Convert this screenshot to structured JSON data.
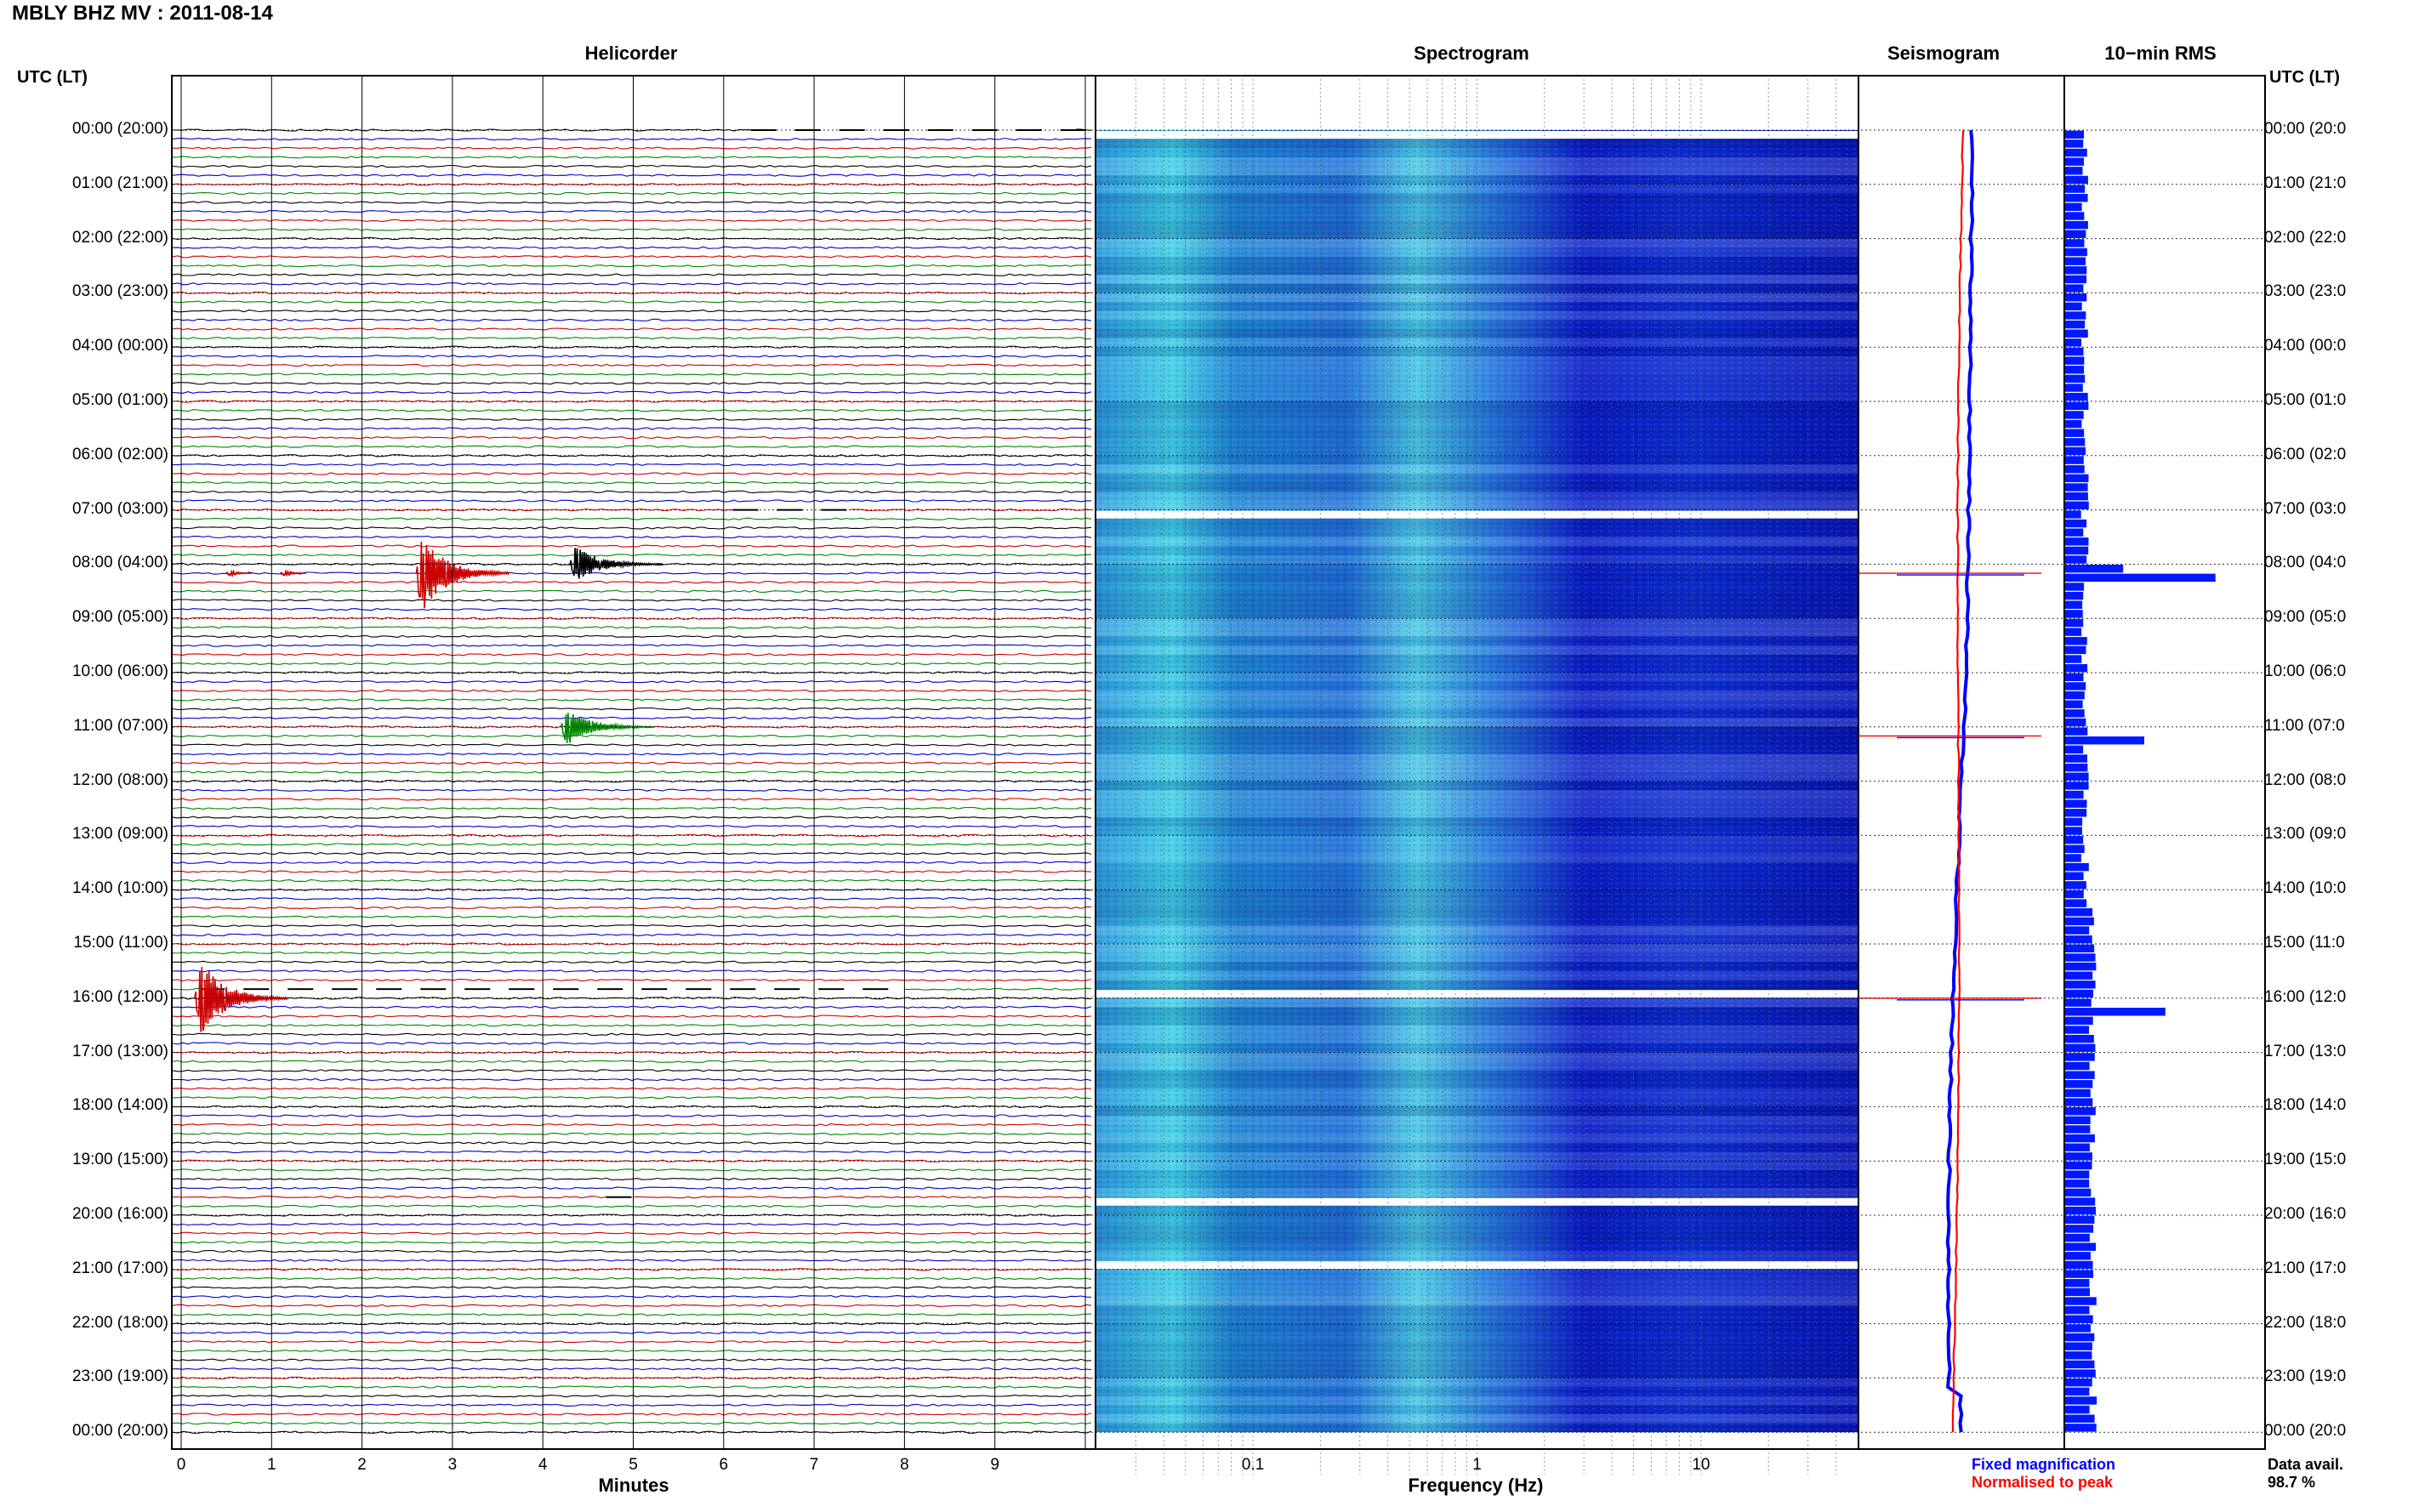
{
  "title": "MBLY BHZ MV : 2011-08-14",
  "time_header_left": "UTC (LT)",
  "time_header_right": "UTC (LT)",
  "panels": {
    "helicorder": "Helicorder",
    "spectrogram": "Spectrogram",
    "seismogram": "Seismogram",
    "rms": "10−min RMS"
  },
  "time_labels_left": [
    "00:00 (20:00)",
    "01:00 (21:00)",
    "02:00 (22:00)",
    "03:00 (23:00)",
    "04:00 (00:00)",
    "05:00 (01:00)",
    "06:00 (02:00)",
    "07:00 (03:00)",
    "08:00 (04:00)",
    "09:00 (05:00)",
    "10:00 (06:00)",
    "11:00 (07:00)",
    "12:00 (08:00)",
    "13:00 (09:00)",
    "14:00 (10:00)",
    "15:00 (11:00)",
    "16:00 (12:00)",
    "17:00 (13:00)",
    "18:00 (14:00)",
    "19:00 (15:00)",
    "20:00 (16:00)",
    "21:00 (17:00)",
    "22:00 (18:00)",
    "23:00 (19:00)",
    "00:00 (20:00)"
  ],
  "time_labels_right": [
    "00:00 (20:0",
    "01:00 (21:0",
    "02:00 (22:0",
    "03:00 (23:0",
    "04:00 (00:0",
    "05:00 (01:0",
    "06:00 (02:0",
    "07:00 (03:0",
    "08:00 (04:0",
    "09:00 (05:0",
    "10:00 (06:0",
    "11:00 (07:0",
    "12:00 (08:0",
    "13:00 (09:0",
    "14:00 (10:0",
    "15:00 (11:0",
    "16:00 (12:0",
    "17:00 (13:0",
    "18:00 (14:0",
    "19:00 (15:0",
    "20:00 (16:0",
    "21:00 (17:0",
    "22:00 (18:0",
    "23:00 (19:0",
    "00:00 (20:0"
  ],
  "x_axis_minutes": {
    "label": "Minutes",
    "ticks": [
      "0",
      "1",
      "2",
      "3",
      "4",
      "5",
      "6",
      "7",
      "8",
      "9"
    ]
  },
  "x_axis_frequency": {
    "label": "Frequency (Hz)",
    "ticks": [
      "0.1",
      "1",
      "10"
    ]
  },
  "legend": {
    "fixed": "Fixed magnification",
    "normalised": "Normalised to peak",
    "fixed_color": "#0000ff",
    "normalised_color": "#ff0000"
  },
  "data_avail": {
    "label": "Data avail.",
    "value": "98.7 %"
  },
  "trace_colors": [
    "#000000",
    "#0000cc",
    "#cc0000",
    "#008800"
  ],
  "chart_data": {
    "type": "heatmap",
    "helicorder": {
      "minutes_range": [
        0,
        10
      ],
      "lines_per_hour": 6,
      "hours": 24,
      "events": [
        {
          "time_utc": "08:10",
          "minute": 2.6,
          "color": "#cc0000",
          "amplitude": "large"
        },
        {
          "time_utc": "08:00",
          "minute": 4.3,
          "color": "#000000",
          "amplitude": "medium"
        },
        {
          "time_utc": "08:10",
          "minute": 1.1,
          "color": "#cc0000",
          "amplitude": "small"
        },
        {
          "time_utc": "08:10",
          "minute": 0.5,
          "color": "#cc0000",
          "amplitude": "small"
        },
        {
          "time_utc": "11:00",
          "minute": 4.2,
          "color": "#008800",
          "amplitude": "medium"
        },
        {
          "time_utc": "16:00",
          "minute": 0.15,
          "color": "#cc0000",
          "amplitude": "large"
        }
      ],
      "gaps": [
        {
          "time_utc": "00:00",
          "minutes": [
            6.3,
            9.9
          ]
        },
        {
          "time_utc": "07:00",
          "minutes": [
            6.1,
            7.4
          ]
        },
        {
          "time_utc": "15:50",
          "minutes": [
            0.2,
            8.0
          ]
        },
        {
          "time_utc": "19:40",
          "minutes": [
            4.7,
            5.0
          ]
        }
      ]
    },
    "spectrogram": {
      "freq_range_hz": [
        0.02,
        50
      ],
      "freq_scale": "log",
      "blank_rows_utc": [
        "00:00",
        "07:00",
        "15:50",
        "19:40",
        "20:50"
      ]
    },
    "seismogram_panel": {
      "spikes_utc": [
        "08:10",
        "11:10",
        "16:00"
      ]
    },
    "rms_10min": {
      "base_level": 1,
      "peaks": [
        {
          "time_utc": "08:00",
          "value": 2.2
        },
        {
          "time_utc": "08:10",
          "value": 5.7
        },
        {
          "time_utc": "11:10",
          "value": 3.0
        },
        {
          "time_utc": "16:10",
          "value": 3.8
        }
      ]
    }
  }
}
